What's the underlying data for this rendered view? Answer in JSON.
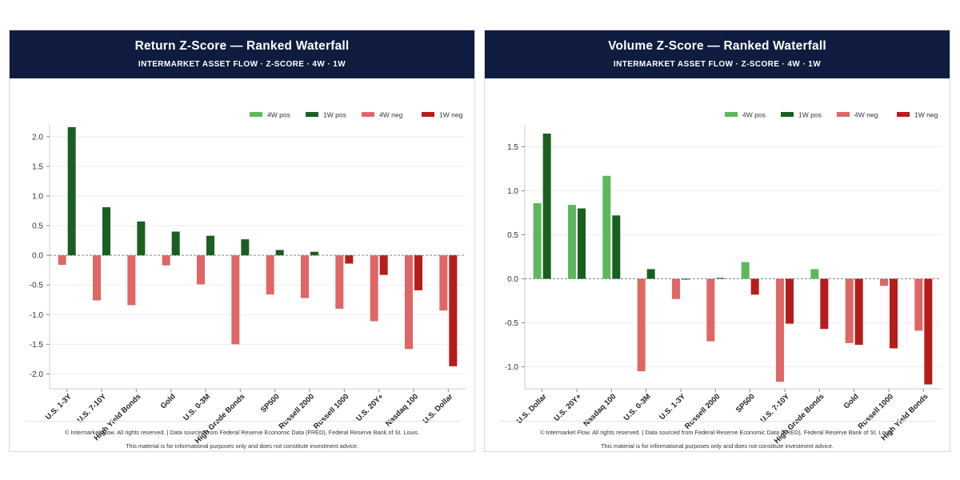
{
  "footer": {
    "line1": "© Intermarket Flow. All rights reserved.  |  Data sourced from Federal Reserve Economic Data (FRED), Federal Reserve Bank of St. Louis.",
    "line2": "This material is for informational purposes only and does not constitute investment advice."
  },
  "colors": {
    "header_bg": "#0f1c3f",
    "pos_4w": "#5cb85c",
    "pos_1w": "#1a5e20",
    "neg_4w": "#e06666",
    "neg_1w": "#b71c1c"
  },
  "chart_data": [
    {
      "type": "bar",
      "title": "Return Z-Score — Ranked Waterfall",
      "subtitle": "INTERMARKET ASSET FLOW  ·  Z-SCORE  ·  4W · 1W",
      "xlabel": "",
      "ylabel": "",
      "ylim": [
        -2.25,
        2.2
      ],
      "yticks": [
        2.0,
        1.5,
        1.0,
        0.5,
        0.0,
        -0.5,
        -1.0,
        -1.5,
        -2.0
      ],
      "grid": true,
      "legend_position": "top-right",
      "legend": [
        "4W pos",
        "1W pos",
        "4W neg",
        "1W neg"
      ],
      "categories": [
        "U.S. 1-3Y",
        "U.S. 7-10Y",
        "High Yield Bonds",
        "Gold",
        "U.S. 0-3M",
        "High Grade Bonds",
        "SP500",
        "Russell 2000",
        "Russell 1000",
        "U.S. 20Y+",
        "Nasdaq 100",
        "U.S. Dollar"
      ],
      "series": [
        {
          "name": "4W",
          "values": [
            -0.16,
            -0.76,
            -0.84,
            -0.17,
            -0.49,
            -1.5,
            -0.66,
            -0.72,
            -0.9,
            -1.11,
            -1.58,
            -0.93
          ]
        },
        {
          "name": "1W",
          "values": [
            2.16,
            0.81,
            0.57,
            0.4,
            0.33,
            0.27,
            0.09,
            0.06,
            -0.14,
            -0.33,
            -0.59,
            -1.87
          ]
        }
      ]
    },
    {
      "type": "bar",
      "title": "Volume Z-Score — Ranked Waterfall",
      "subtitle": "INTERMARKET ASSET FLOW  ·  Z-SCORE  ·  4W · 1W",
      "xlabel": "",
      "ylabel": "",
      "ylim": [
        -1.25,
        1.75
      ],
      "yticks": [
        1.5,
        1.0,
        0.5,
        0.0,
        -0.5,
        -1.0
      ],
      "grid": true,
      "legend_position": "top-right",
      "legend": [
        "4W pos",
        "1W pos",
        "4W neg",
        "1W neg"
      ],
      "categories": [
        "U.S. Dollar",
        "U.S. 20Y+",
        "Nasdaq 100",
        "U.S. 0-3M",
        "U.S. 1-3Y",
        "Russell 2000",
        "SP500",
        "U.S. 7-10Y",
        "High Grade Bonds",
        "Gold",
        "Russell 1000",
        "High Yield Bonds"
      ],
      "series": [
        {
          "name": "4W",
          "values": [
            0.86,
            0.84,
            1.17,
            -1.05,
            -0.23,
            -0.71,
            0.19,
            -1.17,
            0.11,
            -0.73,
            -0.08,
            -0.59
          ]
        },
        {
          "name": "1W",
          "values": [
            1.65,
            0.8,
            0.72,
            0.11,
            0.0,
            0.01,
            -0.18,
            -0.51,
            -0.57,
            -0.75,
            -0.79,
            -1.2
          ]
        }
      ]
    }
  ]
}
